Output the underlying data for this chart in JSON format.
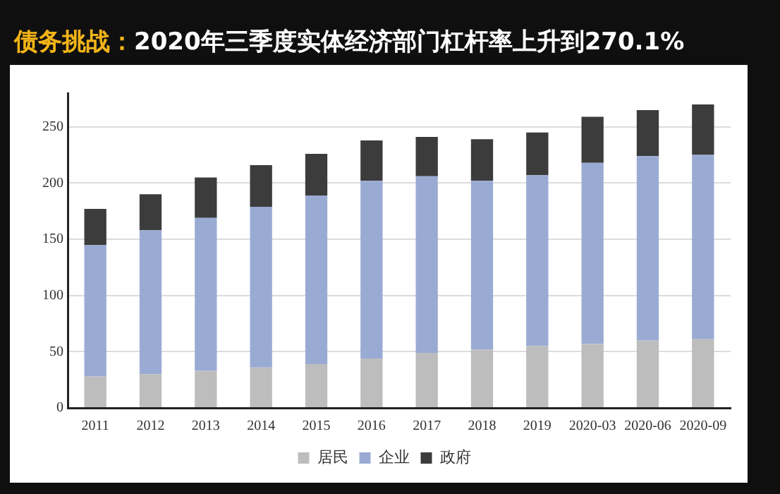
{
  "chart_data": {
    "type": "bar",
    "title": "债务挑战：2020年三季度实体经济部门杠杆率上升到270.1%",
    "stacked": true,
    "categories": [
      "2011",
      "2012",
      "2013",
      "2014",
      "2015",
      "2016",
      "2017",
      "2018",
      "2019",
      "2020-03",
      "2020-06",
      "2020-09"
    ],
    "series": [
      {
        "name": "居民",
        "color": "#bdbdbd",
        "values": [
          28,
          30,
          33,
          36,
          39,
          44,
          49,
          52,
          55,
          57,
          60,
          61
        ]
      },
      {
        "name": "企业",
        "color": "#9aabd3",
        "values": [
          117,
          128,
          136,
          143,
          150,
          158,
          157,
          150,
          152,
          161,
          164,
          164
        ]
      },
      {
        "name": "政府",
        "color": "#3c3c3c",
        "values": [
          32,
          32,
          36,
          37,
          37,
          36,
          35,
          37,
          38,
          41,
          41,
          45
        ]
      }
    ],
    "ylim": [
      0,
      280
    ],
    "yticks": [
      0,
      50,
      100,
      150,
      200,
      250
    ],
    "grid": "y",
    "legend": "bottom"
  }
}
